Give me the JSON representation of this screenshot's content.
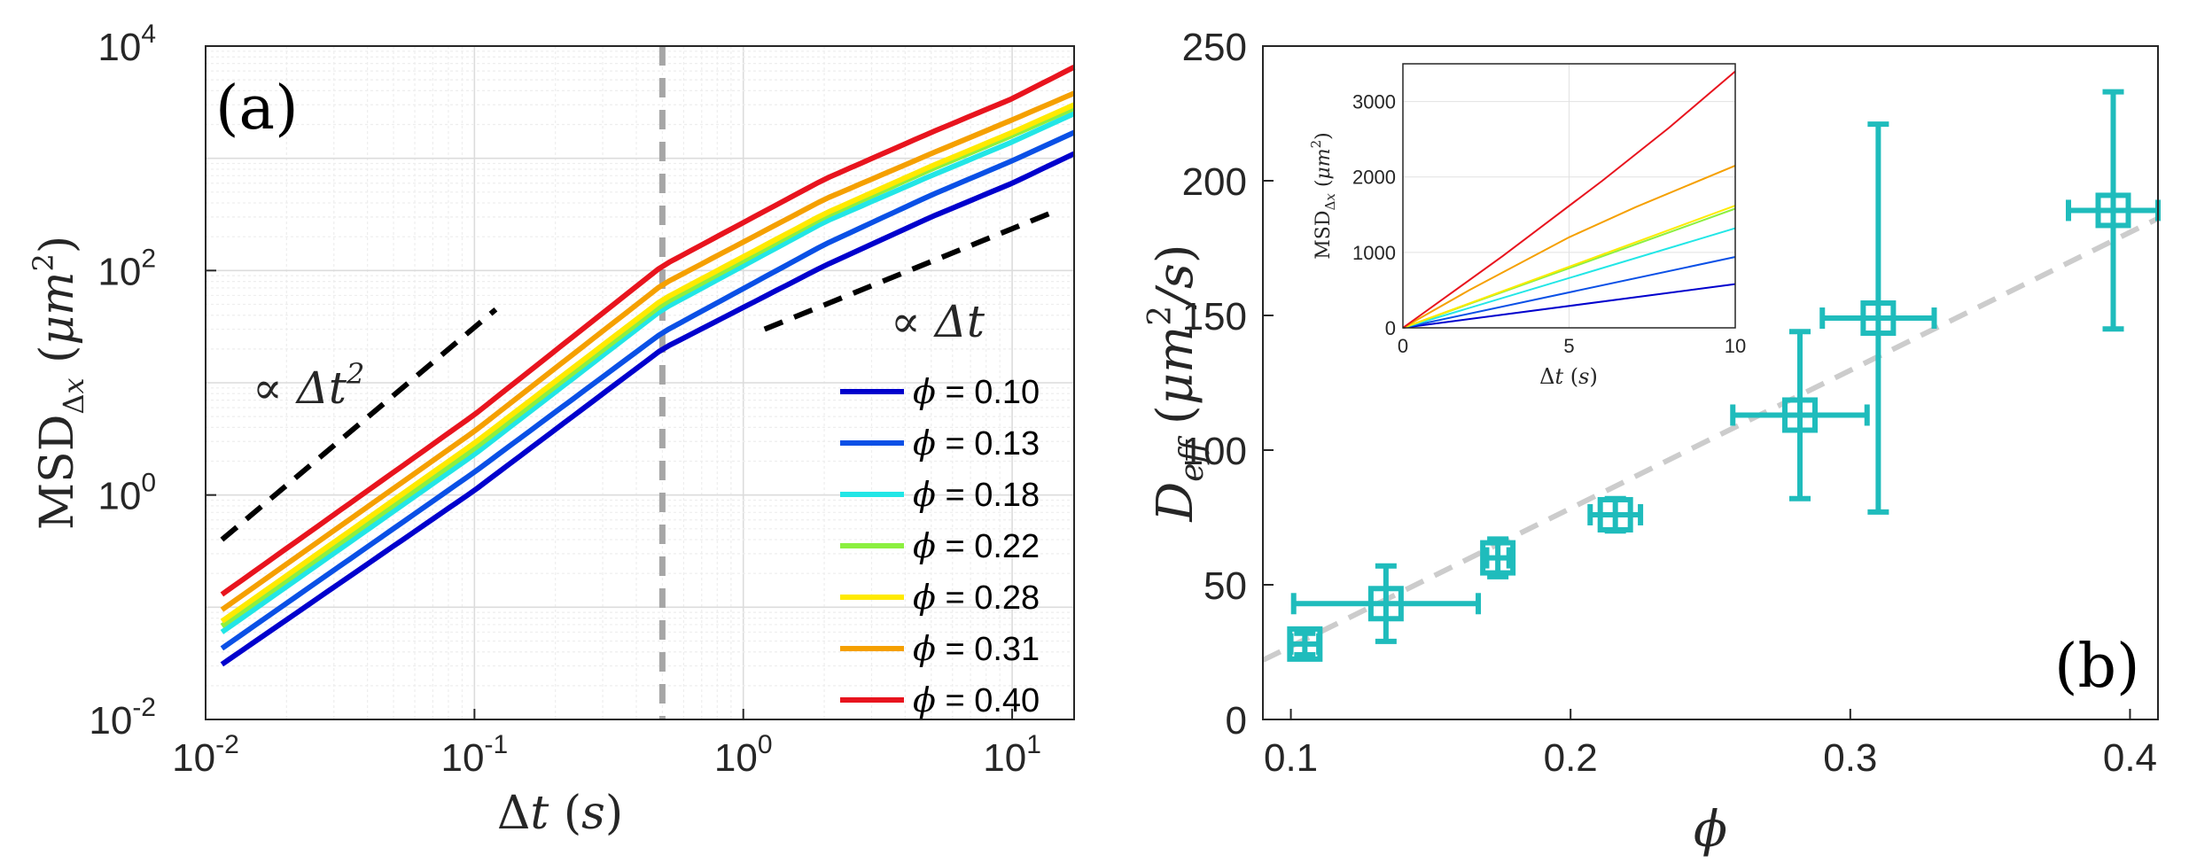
{
  "figure": {
    "panel_a_label": "(a)",
    "panel_b_label": "(b)"
  },
  "chart_data": [
    {
      "type": "line",
      "id": "panel-a",
      "xscale": "log",
      "yscale": "log",
      "xlim": [
        0.01,
        17
      ],
      "ylim": [
        0.01,
        10000
      ],
      "xlabel": "Δt (s)",
      "ylabel": "MSDΔx (μm²)",
      "xticks": [
        {
          "v": 0.01,
          "base": "10",
          "exp": "-2"
        },
        {
          "v": 0.1,
          "base": "10",
          "exp": "-1"
        },
        {
          "v": 1,
          "base": "10",
          "exp": "0"
        },
        {
          "v": 10,
          "base": "10",
          "exp": "1"
        }
      ],
      "yticks": [
        {
          "v": 0.01,
          "base": "10",
          "exp": "-2"
        },
        {
          "v": 1,
          "base": "10",
          "exp": "0"
        },
        {
          "v": 100,
          "base": "10",
          "exp": "2"
        },
        {
          "v": 10000,
          "base": "10",
          "exp": "4"
        }
      ],
      "grid": true,
      "legend_position": "bottom-right",
      "vline": {
        "x": 0.5,
        "color": "#a6a6a6",
        "style": "dashed"
      },
      "series": [
        {
          "name": "ϕ = 0.10",
          "symbol": "ϕ",
          "value": "= 0.10",
          "color": "#0000cd",
          "x": [
            0.0115,
            0.1,
            0.5,
            2,
            5,
            10,
            17
          ],
          "y": [
            0.031,
            1.1,
            20,
            110,
            300,
            600,
            1100
          ]
        },
        {
          "name": "ϕ = 0.13",
          "symbol": "ϕ",
          "value": "= 0.13",
          "color": "#0a50e6",
          "x": [
            0.0115,
            0.1,
            0.5,
            2,
            5,
            10,
            17
          ],
          "y": [
            0.043,
            1.6,
            28,
            170,
            470,
            950,
            1700
          ]
        },
        {
          "name": "ϕ = 0.18",
          "symbol": "ϕ",
          "value": "= 0.18",
          "color": "#22e6e6",
          "x": [
            0.0115,
            0.1,
            0.5,
            2,
            5,
            10,
            17
          ],
          "y": [
            0.06,
            2.3,
            45,
            270,
            700,
            1400,
            2500
          ]
        },
        {
          "name": "ϕ = 0.22",
          "symbol": "ϕ",
          "value": "= 0.22",
          "color": "#8cf040",
          "x": [
            0.0115,
            0.1,
            0.5,
            2,
            5,
            10,
            17
          ],
          "y": [
            0.068,
            2.6,
            50,
            300,
            800,
            1600,
            2800
          ]
        },
        {
          "name": "ϕ = 0.28",
          "symbol": "ϕ",
          "value": "= 0.28",
          "color": "#ffea00",
          "x": [
            0.0115,
            0.1,
            0.5,
            2,
            5,
            10,
            17
          ],
          "y": [
            0.075,
            2.9,
            55,
            320,
            850,
            1700,
            3000
          ]
        },
        {
          "name": "ϕ = 0.31",
          "symbol": "ϕ",
          "value": "= 0.31",
          "color": "#f5a000",
          "x": [
            0.0115,
            0.1,
            0.5,
            2,
            5,
            10,
            17
          ],
          "y": [
            0.095,
            3.7,
            75,
            430,
            1100,
            2200,
            3800
          ]
        },
        {
          "name": "ϕ = 0.40",
          "symbol": "ϕ",
          "value": "= 0.40",
          "color": "#e8141e",
          "x": [
            0.0115,
            0.1,
            0.5,
            2,
            5,
            10,
            17
          ],
          "y": [
            0.13,
            5.2,
            110,
            650,
            1700,
            3400,
            6500
          ]
        }
      ],
      "guides": [
        {
          "label": "∝ Δt²",
          "text_symbol": "∝",
          "text_var": "Δt",
          "text_sup": "2",
          "x": [
            0.0115,
            0.12
          ],
          "y": [
            0.4,
            45
          ],
          "color": "#000000",
          "style": "dashed"
        },
        {
          "label": "∝ Δt",
          "text_symbol": "∝",
          "text_var": "Δt",
          "text_sup": "",
          "x": [
            1.2,
            15
          ],
          "y": [
            30,
            350
          ],
          "color": "#000000",
          "style": "dashed"
        }
      ]
    },
    {
      "type": "scatter",
      "id": "panel-b",
      "xlim": [
        0.09,
        0.41
      ],
      "ylim": [
        0,
        250
      ],
      "xlabel": "ϕ",
      "ylabel": "Deff (μm²/s)",
      "xticks": [
        "0.1",
        "0.2",
        "0.3",
        "0.4"
      ],
      "yticks": [
        "0",
        "50",
        "100",
        "150",
        "200",
        "250"
      ],
      "marker": "square-plus",
      "color": "#1fbcbc",
      "points": [
        {
          "x": 0.105,
          "y": 28,
          "xerr": 0.005,
          "yerr": 4
        },
        {
          "x": 0.134,
          "y": 43,
          "xerr": 0.033,
          "yerr": 14
        },
        {
          "x": 0.174,
          "y": 60,
          "xerr": 0.004,
          "yerr": 7
        },
        {
          "x": 0.216,
          "y": 76,
          "xerr": 0.009,
          "yerr": 6
        },
        {
          "x": 0.282,
          "y": 113,
          "xerr": 0.024,
          "yerr": 31
        },
        {
          "x": 0.31,
          "y": 149,
          "xerr": 0.02,
          "yerr": 72
        },
        {
          "x": 0.394,
          "y": 189,
          "xerr": 0.016,
          "yerr": 44
        }
      ],
      "fit": {
        "x": [
          0.09,
          0.41
        ],
        "y": [
          22,
          186
        ],
        "color": "#cccccc",
        "style": "dashed"
      }
    },
    {
      "type": "line",
      "id": "panel-b-inset",
      "xlim": [
        0,
        10
      ],
      "ylim": [
        0,
        3500
      ],
      "xlabel": "Δt (s)",
      "ylabel": "MSDΔx (μm²)",
      "xticks": [
        "0",
        "5",
        "10"
      ],
      "yticks": [
        "0",
        "1000",
        "2000",
        "3000"
      ],
      "series": [
        {
          "name": "ϕ = 0.10",
          "color": "#0000cd",
          "x": [
            0,
            10
          ],
          "y": [
            0,
            580
          ]
        },
        {
          "name": "ϕ = 0.13",
          "color": "#0a50e6",
          "x": [
            0,
            10
          ],
          "y": [
            0,
            940
          ]
        },
        {
          "name": "ϕ = 0.18",
          "color": "#22e6e6",
          "x": [
            0,
            10
          ],
          "y": [
            0,
            1320
          ]
        },
        {
          "name": "ϕ = 0.22",
          "color": "#8cf040",
          "x": [
            0,
            10
          ],
          "y": [
            0,
            1580
          ]
        },
        {
          "name": "ϕ = 0.28",
          "color": "#ffea00",
          "x": [
            0,
            10
          ],
          "y": [
            0,
            1620
          ]
        },
        {
          "name": "ϕ = 0.31",
          "color": "#f5a000",
          "x": [
            0,
            2,
            5,
            7,
            10
          ],
          "y": [
            0,
            500,
            1200,
            1600,
            2150
          ]
        },
        {
          "name": "ϕ = 0.40",
          "color": "#e8141e",
          "x": [
            0,
            3,
            6,
            8,
            10
          ],
          "y": [
            0,
            950,
            1950,
            2650,
            3400
          ]
        }
      ]
    }
  ]
}
